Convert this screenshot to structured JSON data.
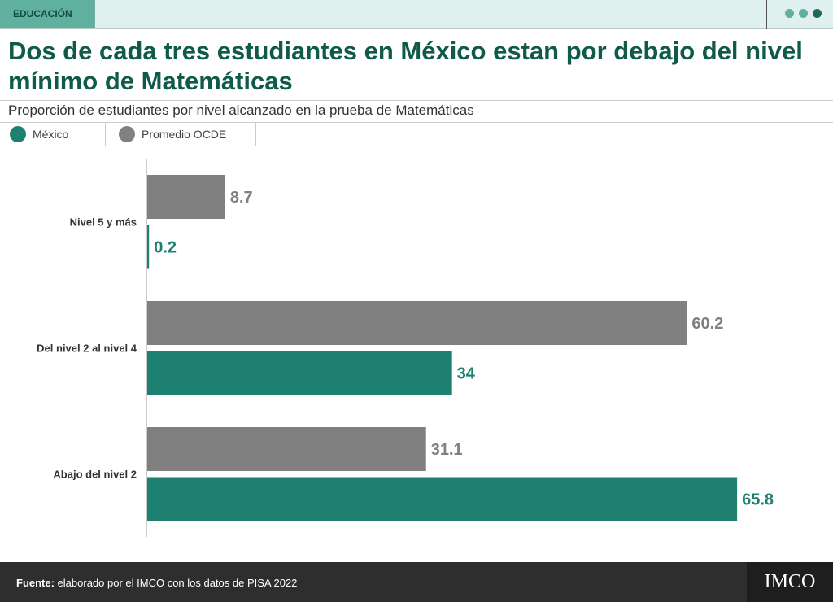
{
  "header": {
    "section_tag": "EDUCACIÓN"
  },
  "colors": {
    "mexico": "#1e8070",
    "ocde": "#808080",
    "title": "#0f5a49"
  },
  "title": "Dos de cada tres estudiantes en México estan por debajo del nivel mínimo de Matemáticas",
  "subtitle": "Proporción de estudiantes por nivel alcanzado en la prueba de Matemáticas",
  "legend": [
    {
      "label": "México"
    },
    {
      "label": "Promedio OCDE"
    }
  ],
  "chart_data": {
    "type": "bar",
    "orientation": "horizontal",
    "categories": [
      "Nivel 5 y más",
      "Del nivel 2 al nivel 4",
      "Abajo del nivel 2"
    ],
    "series": [
      {
        "name": "Promedio OCDE",
        "values": [
          8.7,
          60.2,
          31.1
        ],
        "labels": [
          "8.7",
          "60.2",
          "31.1"
        ]
      },
      {
        "name": "México",
        "values": [
          0.2,
          34,
          65.8
        ],
        "labels": [
          "0.2",
          "34",
          "65.8"
        ]
      }
    ],
    "xlim": [
      0,
      66
    ],
    "grid": false,
    "legend_position": "top-left"
  },
  "footer": {
    "source_label": "Fuente:",
    "source_text": " elaborado por el IMCO con los datos de PISA 2022",
    "logo": "IMCO"
  }
}
